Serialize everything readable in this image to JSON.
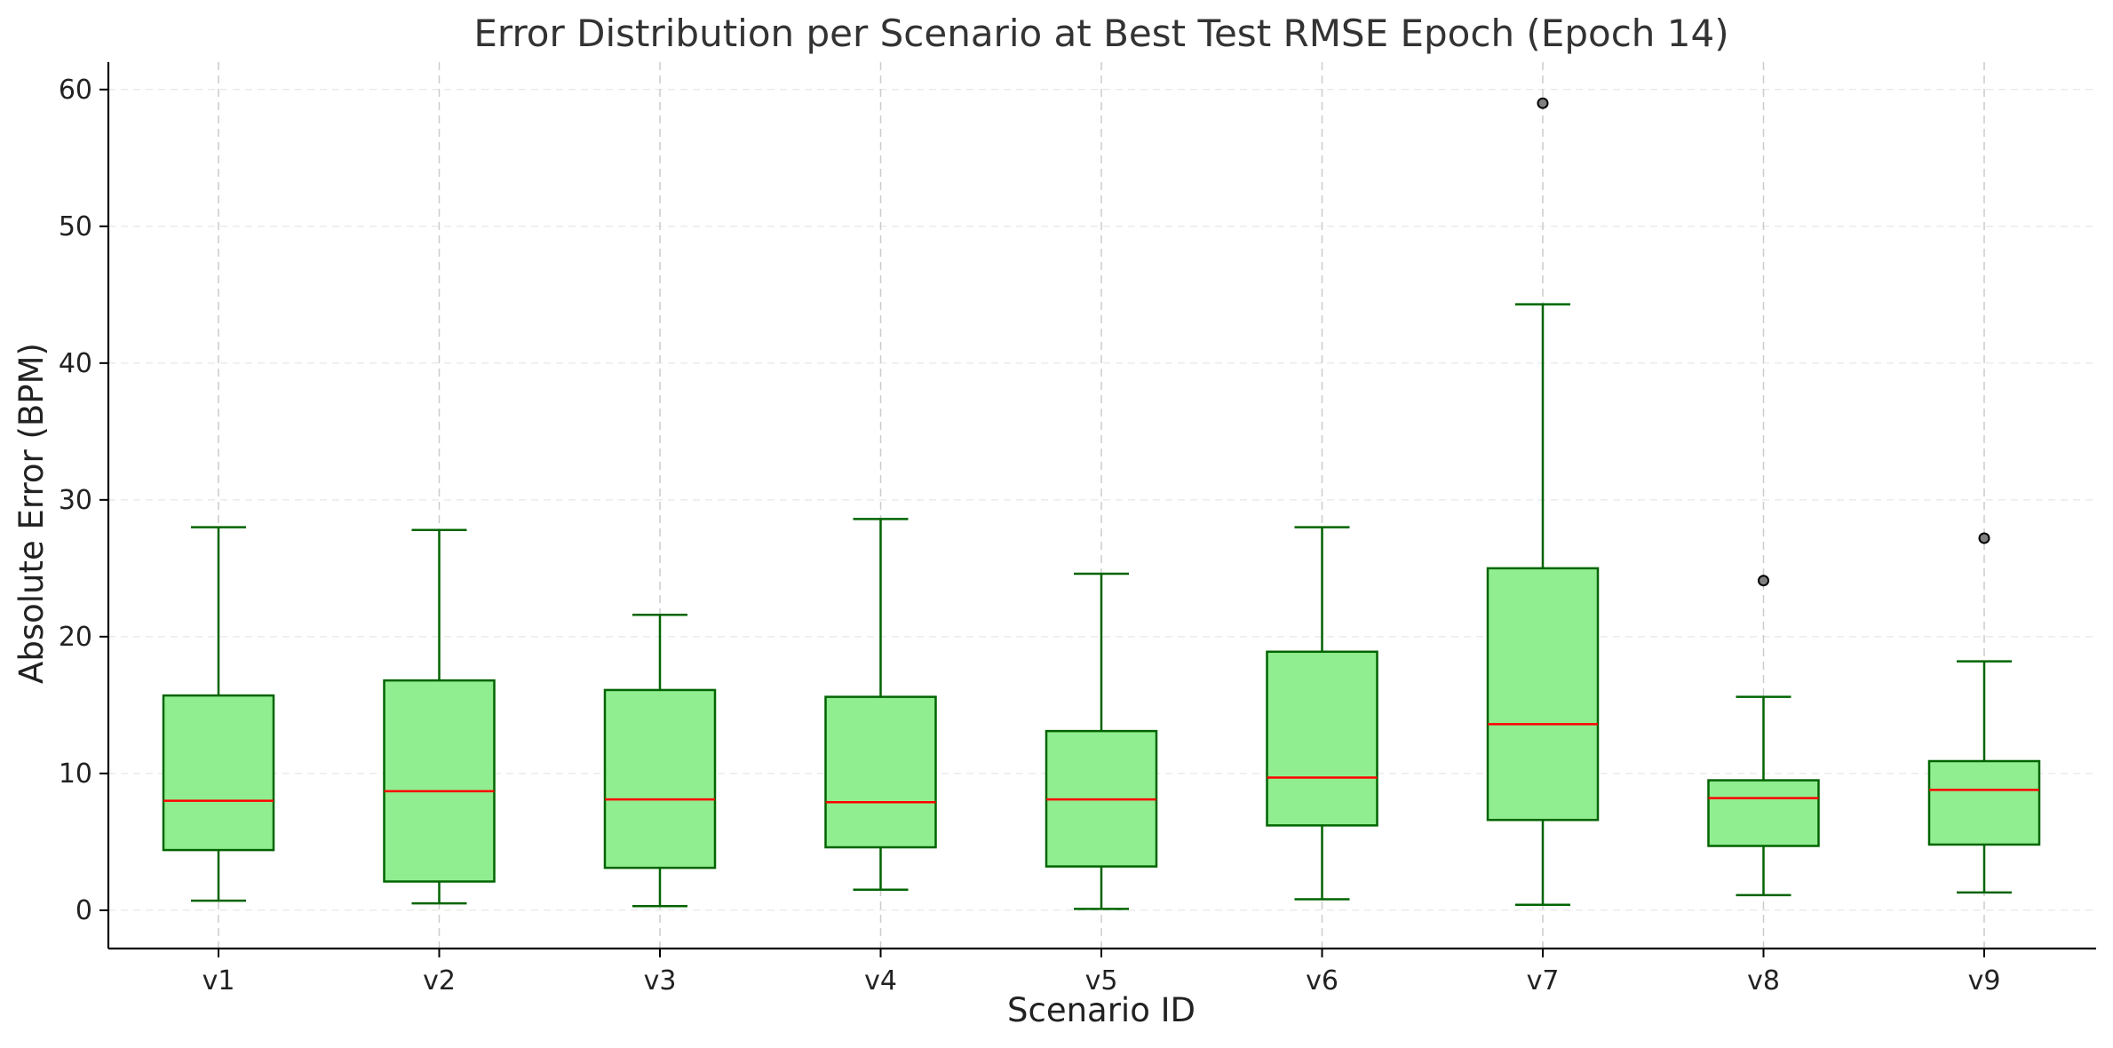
{
  "chart_data": {
    "type": "boxplot",
    "title": "Error Distribution per Scenario at Best Test RMSE Epoch (Epoch 14)",
    "xlabel": "Scenario ID",
    "ylabel": "Absolute Error (BPM)",
    "ylim": [
      -2.8,
      62
    ],
    "yticks": [
      0,
      10,
      20,
      30,
      40,
      50,
      60
    ],
    "grid": true,
    "categories": [
      "v1",
      "v2",
      "v3",
      "v4",
      "v5",
      "v6",
      "v7",
      "v8",
      "v9"
    ],
    "boxes": [
      {
        "whisker_low": 0.7,
        "q1": 4.4,
        "median": 8.0,
        "q3": 15.7,
        "whisker_high": 28.0,
        "outliers": []
      },
      {
        "whisker_low": 0.5,
        "q1": 2.1,
        "median": 8.7,
        "q3": 16.8,
        "whisker_high": 27.8,
        "outliers": []
      },
      {
        "whisker_low": 0.3,
        "q1": 3.1,
        "median": 8.1,
        "q3": 16.1,
        "whisker_high": 21.6,
        "outliers": []
      },
      {
        "whisker_low": 1.5,
        "q1": 4.6,
        "median": 7.9,
        "q3": 15.6,
        "whisker_high": 28.6,
        "outliers": []
      },
      {
        "whisker_low": 0.1,
        "q1": 3.2,
        "median": 8.1,
        "q3": 13.1,
        "whisker_high": 24.6,
        "outliers": []
      },
      {
        "whisker_low": 0.8,
        "q1": 6.2,
        "median": 9.7,
        "q3": 18.9,
        "whisker_high": 28.0,
        "outliers": []
      },
      {
        "whisker_low": 0.4,
        "q1": 6.6,
        "median": 13.6,
        "q3": 25.0,
        "whisker_high": 44.3,
        "outliers": [
          59.0
        ]
      },
      {
        "whisker_low": 1.1,
        "q1": 4.7,
        "median": 8.2,
        "q3": 9.5,
        "whisker_high": 15.6,
        "outliers": [
          24.1
        ]
      },
      {
        "whisker_low": 1.3,
        "q1": 4.8,
        "median": 8.8,
        "q3": 10.9,
        "whisker_high": 18.2,
        "outliers": [
          27.2
        ]
      }
    ],
    "colors": {
      "box_fill": "#90ee90",
      "box_edge": "#006400",
      "median": "#ff0000",
      "outlier_fill": "#808080",
      "grid": "#cccccc",
      "axis": "#000000"
    }
  }
}
